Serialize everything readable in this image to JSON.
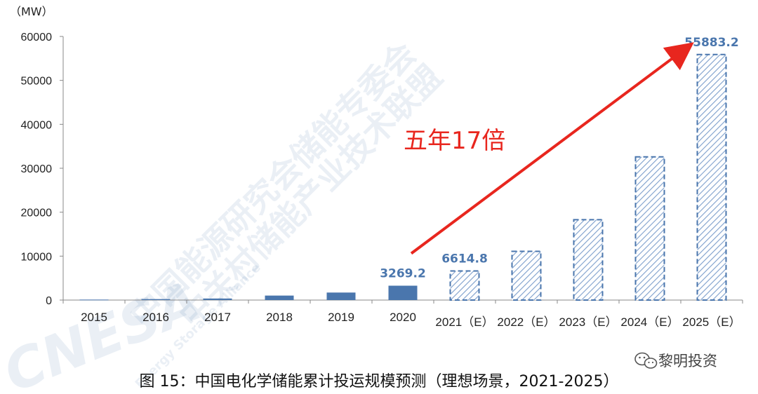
{
  "chart_data": {
    "type": "bar",
    "unit_label": "（MW）",
    "categories": [
      "2015",
      "2016",
      "2017",
      "2018",
      "2019",
      "2020",
      "2021（E）",
      "2022（E）",
      "2023（E）",
      "2024（E）",
      "2025（E）"
    ],
    "values": [
      105,
      220,
      350,
      1020,
      1710,
      3269.2,
      6614.8,
      11100,
      18300,
      32600,
      55883.2
    ],
    "estimated": [
      false,
      false,
      false,
      false,
      false,
      false,
      true,
      true,
      true,
      true,
      true
    ],
    "data_labels": [
      "",
      "",
      "",
      "",
      "",
      "3269.2",
      "6614.8",
      "",
      "",
      "",
      "55883.2"
    ],
    "ylim": [
      0,
      60000
    ],
    "yticks": [
      0,
      10000,
      20000,
      30000,
      40000,
      50000,
      60000
    ],
    "ytick_labels": [
      "0",
      "10000",
      "20000",
      "30000",
      "40000",
      "50000",
      "60000"
    ],
    "grid": false,
    "legend": "none",
    "annotation": {
      "text": "五年17倍",
      "arrow_from_category": "2020",
      "arrow_to_category": "2025（E）"
    },
    "colors": {
      "actual": "#4a76ad",
      "estimate": "#4a76ad",
      "annotation": "#e8261e"
    }
  },
  "caption": "图 15：中国电化学储能累计投运规模预测（理想场景，2021-2025）",
  "watermarks": {
    "line1": "中国能源研究会储能专委会",
    "line2": "中关村储能产业技术联盟",
    "logo": "CNESA",
    "logo_sub": "Energy Storage Alliance"
  },
  "brand": {
    "name": "黎明投资",
    "icon": "wechat-icon"
  }
}
